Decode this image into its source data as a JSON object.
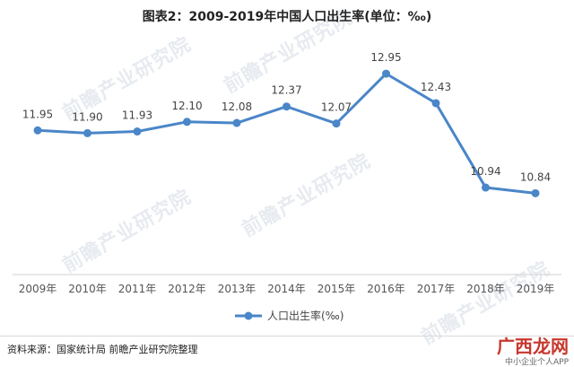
{
  "title": "图表2：2009-2019年中国人口出生率(单位：‰)",
  "source": "资料来源：国家统计局 前瞻产业研究院整理",
  "watermark": "前瞻产业研究院",
  "corner_logo": "广西龙网",
  "corner_sub": "中小企业个人APP",
  "chart_data": {
    "type": "line",
    "categories": [
      "2009年",
      "2010年",
      "2011年",
      "2012年",
      "2013年",
      "2014年",
      "2015年",
      "2016年",
      "2017年",
      "2018年",
      "2019年"
    ],
    "series": [
      {
        "name": "人口出生率(‰)",
        "values": [
          11.95,
          11.9,
          11.93,
          12.1,
          12.08,
          12.37,
          12.07,
          12.95,
          12.43,
          10.94,
          10.84
        ],
        "color": "#4a86c8"
      }
    ],
    "ylim": [
      9.5,
      13.3
    ],
    "grid": false,
    "legend_position": "bottom-center",
    "data_labels": true
  }
}
